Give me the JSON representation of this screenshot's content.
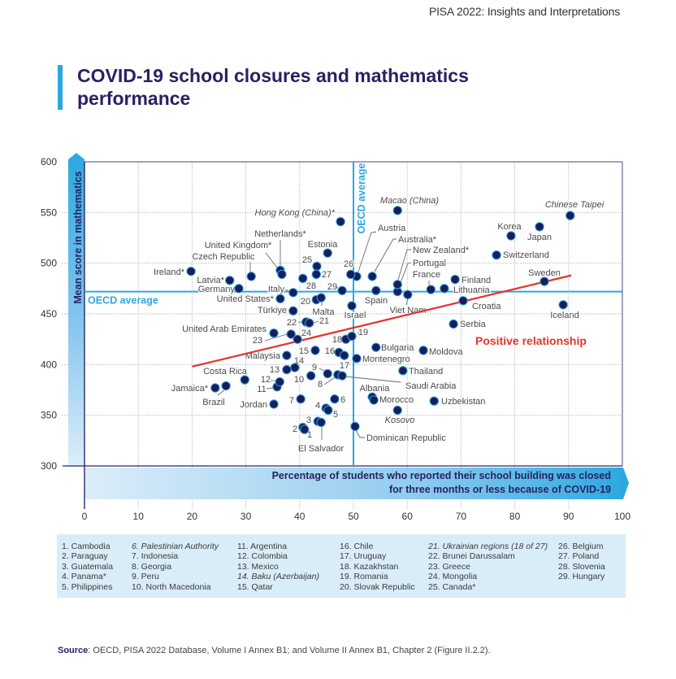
{
  "header": {
    "running_title": "PISA 2022: Insights and Interpretations"
  },
  "figure": {
    "title": "COVID-19 school closures and mathematics performance"
  },
  "source": {
    "label": "Source",
    "text": ": OECD, PISA 2022 Database, Volume I Annex B1; and Volume II Annex B1, Chapter 2 (Figure II.2.2)."
  },
  "chart_data": {
    "type": "scatter",
    "title": "COVID-19 school closures and mathematics performance",
    "ylabel": "Mean score in mathematics",
    "xlabel_lines": [
      "Percentage of students who reported their school building was closed",
      "for three months or less because of COVID-19"
    ],
    "xlim": [
      0,
      100
    ],
    "ylim": [
      300,
      600
    ],
    "x_ticks": [
      0,
      10,
      20,
      30,
      40,
      50,
      60,
      70,
      80,
      90,
      100
    ],
    "y_ticks": [
      300,
      350,
      400,
      450,
      500,
      550,
      600
    ],
    "grid": true,
    "reference_lines": {
      "label": "OECD average",
      "x": 50,
      "y": 472,
      "color": "#2aa8e0"
    },
    "trendline": {
      "label": "Positive relationship",
      "x": [
        20,
        90.5
      ],
      "y": [
        398,
        488
      ],
      "color": "#e6322b"
    },
    "colors": {
      "point_fill": "#1b1c5c",
      "point_outline": "#2aa8e0"
    },
    "points": [
      {
        "label": "Hong Kong (China)*",
        "x": 47.6,
        "y": 541,
        "italic": true
      },
      {
        "label": "Macao (China)",
        "x": 58.2,
        "y": 552,
        "italic": true
      },
      {
        "label": "Chinese Taipei",
        "x": 90.3,
        "y": 547,
        "italic": true
      },
      {
        "label": "Korea",
        "x": 79.3,
        "y": 527
      },
      {
        "label": "Japan",
        "x": 84.6,
        "y": 536
      },
      {
        "label": "Switzerland",
        "x": 76.6,
        "y": 508
      },
      {
        "label": "Sweden",
        "x": 85.5,
        "y": 482
      },
      {
        "label": "Iceland",
        "x": 89.0,
        "y": 459
      },
      {
        "label": "Croatia",
        "x": 70.4,
        "y": 463
      },
      {
        "label": "Finland",
        "x": 68.9,
        "y": 484
      },
      {
        "label": "Lithuania",
        "x": 66.9,
        "y": 475
      },
      {
        "label": "France",
        "x": 64.4,
        "y": 474
      },
      {
        "label": "Portugal",
        "x": 58.2,
        "y": 472
      },
      {
        "label": "New Zealand*",
        "x": 58.2,
        "y": 479
      },
      {
        "label": "Australia*",
        "x": 53.5,
        "y": 487
      },
      {
        "label": "Austria",
        "x": 50.6,
        "y": 487
      },
      {
        "label": "26",
        "name": "Belgium",
        "x": 49.5,
        "y": 489
      },
      {
        "label": "Spain",
        "x": 54.2,
        "y": 473
      },
      {
        "label": "Viet Nam",
        "x": 60.1,
        "y": 469
      },
      {
        "label": "Estonia",
        "x": 45.2,
        "y": 510
      },
      {
        "label": "Netherlands*",
        "x": 36.4,
        "y": 493
      },
      {
        "label": "United Kingdom*",
        "x": 36.7,
        "y": 489
      },
      {
        "label": "Czech Republic",
        "x": 31.0,
        "y": 487
      },
      {
        "label": "Ireland*",
        "x": 19.8,
        "y": 492
      },
      {
        "label": "Latvia*",
        "x": 27.0,
        "y": 483
      },
      {
        "label": "Germany",
        "x": 28.7,
        "y": 475
      },
      {
        "label": "Italy",
        "x": 38.8,
        "y": 471
      },
      {
        "label": "United States*",
        "x": 36.4,
        "y": 465
      },
      {
        "label": "Türkiye",
        "x": 38.8,
        "y": 453
      },
      {
        "label": "28",
        "name": "Slovenia",
        "x": 40.6,
        "y": 485
      },
      {
        "label": "25",
        "name": "Canada*",
        "x": 43.2,
        "y": 497
      },
      {
        "label": "27",
        "name": "Poland",
        "x": 43.1,
        "y": 489
      },
      {
        "label": "29",
        "name": "Hungary",
        "x": 47.9,
        "y": 473
      },
      {
        "label": "20",
        "name": "Slovak Republic",
        "x": 43.1,
        "y": 464
      },
      {
        "label": "Malta",
        "x": 44.0,
        "y": 466
      },
      {
        "label": "Israel",
        "x": 49.7,
        "y": 458
      },
      {
        "label": "22",
        "name": "Brunei Darussalam",
        "x": 41.2,
        "y": 442
      },
      {
        "label": "21",
        "name": "Ukrainian regions (18 of 27)",
        "x": 41.8,
        "y": 441
      },
      {
        "label": "United Arab Emirates",
        "x": 35.2,
        "y": 431
      },
      {
        "label": "23",
        "name": "Greece",
        "x": 38.4,
        "y": 430
      },
      {
        "label": "24",
        "name": "Mongolia",
        "x": 39.6,
        "y": 425
      },
      {
        "label": "18",
        "name": "Kazakhstan",
        "x": 48.6,
        "y": 425
      },
      {
        "label": "19",
        "name": "Romania",
        "x": 49.7,
        "y": 428
      },
      {
        "label": "15",
        "name": "Qatar",
        "x": 42.9,
        "y": 414
      },
      {
        "label": "16",
        "name": "Chile",
        "x": 47.3,
        "y": 412
      },
      {
        "label": "17",
        "name": "Uruguay",
        "x": 48.3,
        "y": 409
      },
      {
        "label": "Montenegro",
        "x": 50.6,
        "y": 406
      },
      {
        "label": "Bulgaria",
        "x": 54.2,
        "y": 417
      },
      {
        "label": "Moldova",
        "x": 63.0,
        "y": 414
      },
      {
        "label": "Serbia",
        "x": 68.6,
        "y": 440
      },
      {
        "label": "Malaysia",
        "x": 37.6,
        "y": 409
      },
      {
        "label": "14",
        "name": "Baku (Azerbaijan)",
        "x": 39.1,
        "y": 397
      },
      {
        "label": "13",
        "name": "Mexico",
        "x": 37.6,
        "y": 395
      },
      {
        "label": "9",
        "name": "Peru",
        "x": 45.2,
        "y": 391
      },
      {
        "label": "10",
        "name": "North Macedonia",
        "x": 42.1,
        "y": 389
      },
      {
        "label": "8",
        "name": "Georgia",
        "x": 47.1,
        "y": 390
      },
      {
        "label": "Saudi Arabia",
        "x": 47.9,
        "y": 389
      },
      {
        "label": "Thailand",
        "x": 59.2,
        "y": 394
      },
      {
        "label": "Albania",
        "x": 53.5,
        "y": 368
      },
      {
        "label": "Morocco",
        "x": 53.8,
        "y": 365
      },
      {
        "label": "Uzbekistan",
        "x": 65.0,
        "y": 364
      },
      {
        "label": "Kosovo",
        "x": 58.2,
        "y": 355,
        "italic": true
      },
      {
        "label": "Dominican Republic",
        "x": 50.3,
        "y": 339
      },
      {
        "label": "Costa Rica",
        "x": 29.8,
        "y": 385
      },
      {
        "label": "Jamaica*",
        "x": 24.3,
        "y": 377
      },
      {
        "label": "Brazil",
        "x": 26.3,
        "y": 379
      },
      {
        "label": "Jordan",
        "x": 35.2,
        "y": 361
      },
      {
        "label": "11",
        "name": "Argentina",
        "x": 35.8,
        "y": 378
      },
      {
        "label": "12",
        "name": "Colombia",
        "x": 36.3,
        "y": 383
      },
      {
        "label": "7",
        "name": "Indonesia",
        "x": 40.2,
        "y": 366
      },
      {
        "label": "6",
        "name": "Palestinian Authority",
        "x": 46.5,
        "y": 366
      },
      {
        "label": "4",
        "name": "Panama*",
        "x": 44.9,
        "y": 357
      },
      {
        "label": "5",
        "name": "Philippines",
        "x": 45.3,
        "y": 355
      },
      {
        "label": "3",
        "name": "Guatemala",
        "x": 43.4,
        "y": 344
      },
      {
        "label": "El Salvador",
        "x": 44.0,
        "y": 343
      },
      {
        "label": "2",
        "name": "Paraguay",
        "x": 40.6,
        "y": 338
      },
      {
        "label": "1",
        "name": "Cambodia",
        "x": 40.9,
        "y": 336
      }
    ],
    "legend": {
      "entries": [
        {
          "text": "1. Cambodia"
        },
        {
          "text": "2. Paraguay"
        },
        {
          "text": "3. Guatemala"
        },
        {
          "text": "4. Panama*"
        },
        {
          "text": "5. Philippines"
        },
        {
          "text": "6. Palestinian Authority",
          "italic": true
        },
        {
          "text": "7. Indonesia"
        },
        {
          "text": "8. Georgia"
        },
        {
          "text": "9. Peru"
        },
        {
          "text": "10. North Macedonia"
        },
        {
          "text": "11. Argentina"
        },
        {
          "text": "12. Colombia"
        },
        {
          "text": "13. Mexico"
        },
        {
          "text": "14. Baku (Azerbaijan)",
          "italic": true
        },
        {
          "text": "15. Qatar"
        },
        {
          "text": "16. Chile"
        },
        {
          "text": "17. Uruguay"
        },
        {
          "text": "18. Kazakhstan"
        },
        {
          "text": "19. Romania"
        },
        {
          "text": "20. Slovak Republic"
        },
        {
          "text": "21. Ukrainian regions (18 of 27)",
          "italic": true
        },
        {
          "text": "22. Brunei Darussalam"
        },
        {
          "text": "23. Greece"
        },
        {
          "text": "24. Mongolia"
        },
        {
          "text": "25. Canada*"
        },
        {
          "text": "26. Belgium"
        },
        {
          "text": "27. Poland"
        },
        {
          "text": "28. Slovenia"
        },
        {
          "text": "29. Hungary"
        }
      ]
    }
  }
}
